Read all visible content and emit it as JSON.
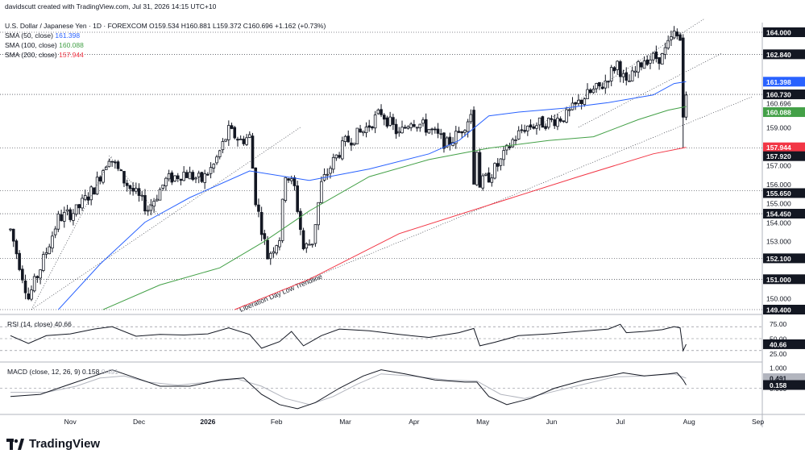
{
  "header": {
    "credit": "davidscutt created with TradingView.com, Jul 31, 2026 14:15 UTC+10",
    "symbol_line": "U.S. Dollar / Japanese Yen · 1D · FOREXCOM  O159.534  H160.881  L159.372  C160.696  +1.162 (+0.73%)",
    "sma50": "SMA (50, close)",
    "sma50_val": "161.398",
    "sma100": "SMA (100, close)",
    "sma100_val": "160.088",
    "sma200": "SMA (200, close)",
    "sma200_val": "157.944"
  },
  "colors": {
    "up": "#26a69a",
    "candle": "#131722",
    "sma50": "#2962ff",
    "sma100": "#43a047",
    "sma200": "#f23645",
    "rsi": "#131722",
    "macd": "#131722",
    "signal": "#b2b5be",
    "grid": "#e0e3eb"
  },
  "brand": {
    "logo_icon": "tradingview-logo-icon",
    "name": "TradingView"
  },
  "annotations": {
    "trendline_label": "Liberation Day Low Trendline"
  },
  "chart_data": [
    {
      "type": "candlestick",
      "title": "U.S. Dollar / Japanese Yen",
      "ylim": [
        149.4,
        164.0
      ],
      "y_ticks": [
        150.0,
        151.0,
        152.1,
        153.0,
        154.0,
        154.45,
        155.0,
        155.65,
        156.0,
        157.0,
        157.92,
        159.0,
        160.696,
        162.0,
        162.84,
        164.0
      ],
      "price_labels": [
        {
          "value": 164.0,
          "text": "164.000",
          "style": "dark"
        },
        {
          "value": 162.84,
          "text": "162.840",
          "style": "dark"
        },
        {
          "value": 161.398,
          "text": "161.398",
          "style": "sma50"
        },
        {
          "value": 160.73,
          "text": "160.730",
          "style": "dark"
        },
        {
          "value": 160.696,
          "text": "160.696",
          "style": "plain"
        },
        {
          "value": 160.088,
          "text": "160.088",
          "style": "sma100"
        },
        {
          "value": 159.0,
          "text": "159.000",
          "style": "plain"
        },
        {
          "value": 157.944,
          "text": "157.944",
          "style": "sma200"
        },
        {
          "value": 157.92,
          "text": "157.920",
          "style": "dark"
        },
        {
          "value": 157.0,
          "text": "157.000",
          "style": "plain"
        },
        {
          "value": 156.0,
          "text": "156.000",
          "style": "plain"
        },
        {
          "value": 155.65,
          "text": "155.650",
          "style": "dark"
        },
        {
          "value": 155.0,
          "text": "155.000",
          "style": "plain"
        },
        {
          "value": 154.45,
          "text": "154.450",
          "style": "dark"
        },
        {
          "value": 154.0,
          "text": "154.000",
          "style": "plain"
        },
        {
          "value": 153.0,
          "text": "153.000",
          "style": "plain"
        },
        {
          "value": 152.1,
          "text": "152.100",
          "style": "dark"
        },
        {
          "value": 151.0,
          "text": "151.000",
          "style": "dark"
        },
        {
          "value": 150.0,
          "text": "150.000",
          "style": "plain"
        },
        {
          "value": 149.4,
          "text": "149.400",
          "style": "dark"
        }
      ],
      "horizontal_levels": [
        164.0,
        162.84,
        160.73,
        157.92,
        155.65,
        154.45,
        152.1,
        151.0,
        149.4
      ],
      "x_labels": [
        {
          "i": 20,
          "text": "Nov",
          "bold": false
        },
        {
          "i": 43,
          "text": "Dec",
          "bold": false
        },
        {
          "i": 66,
          "text": "2026",
          "bold": true
        },
        {
          "i": 89,
          "text": "Feb",
          "bold": false
        },
        {
          "i": 112,
          "text": "Mar",
          "bold": false
        },
        {
          "i": 135,
          "text": "Apr",
          "bold": false
        },
        {
          "i": 158,
          "text": "May",
          "bold": false
        },
        {
          "i": 181,
          "text": "Jun",
          "bold": false
        },
        {
          "i": 204,
          "text": "Jul",
          "bold": false
        },
        {
          "i": 227,
          "text": "Aug",
          "bold": false
        },
        {
          "i": 250,
          "text": "Sep",
          "bold": false
        }
      ],
      "price_path": [
        [
          0,
          153.6
        ],
        [
          6,
          150.0
        ],
        [
          10,
          151.6
        ],
        [
          16,
          154.2
        ],
        [
          22,
          154.6
        ],
        [
          28,
          155.8
        ],
        [
          33,
          157.5
        ],
        [
          38,
          156.2
        ],
        [
          46,
          154.7
        ],
        [
          52,
          156.2
        ],
        [
          58,
          156.6
        ],
        [
          64,
          156.2
        ],
        [
          68,
          157.0
        ],
        [
          73,
          158.8
        ],
        [
          77,
          158.3
        ],
        [
          80,
          158.5
        ],
        [
          82,
          155.2
        ],
        [
          86,
          152.2
        ],
        [
          90,
          153.2
        ],
        [
          92,
          156.6
        ],
        [
          95,
          155.8
        ],
        [
          98,
          152.6
        ],
        [
          101,
          153.0
        ],
        [
          104,
          156.0
        ],
        [
          108,
          157.2
        ],
        [
          112,
          158.2
        ],
        [
          118,
          158.8
        ],
        [
          124,
          159.8
        ],
        [
          130,
          158.6
        ],
        [
          134,
          159.4
        ],
        [
          140,
          158.9
        ],
        [
          146,
          158.1
        ],
        [
          150,
          158.7
        ],
        [
          155,
          159.9
        ],
        [
          157,
          156.0
        ],
        [
          160,
          156.4
        ],
        [
          164,
          157.2
        ],
        [
          168,
          158.3
        ],
        [
          172,
          159.0
        ],
        [
          180,
          159.3
        ],
        [
          186,
          159.6
        ],
        [
          192,
          160.6
        ],
        [
          198,
          161.2
        ],
        [
          203,
          162.4
        ],
        [
          206,
          161.2
        ],
        [
          212,
          162.6
        ],
        [
          218,
          162.7
        ],
        [
          222,
          163.9
        ],
        [
          224,
          163.6
        ],
        [
          225,
          159.5
        ],
        [
          226,
          160.7
        ]
      ],
      "sma50": [
        [
          16,
          149.4
        ],
        [
          30,
          151.8
        ],
        [
          45,
          154.0
        ],
        [
          60,
          155.3
        ],
        [
          80,
          156.7
        ],
        [
          100,
          156.2
        ],
        [
          120,
          156.8
        ],
        [
          140,
          157.6
        ],
        [
          150,
          158.3
        ],
        [
          160,
          159.6
        ],
        [
          170,
          159.8
        ],
        [
          185,
          160.0
        ],
        [
          200,
          160.3
        ],
        [
          215,
          160.7
        ],
        [
          222,
          161.3
        ],
        [
          226,
          161.4
        ]
      ],
      "sma100": [
        [
          31,
          149.4
        ],
        [
          50,
          150.7
        ],
        [
          70,
          151.6
        ],
        [
          85,
          153.0
        ],
        [
          100,
          154.6
        ],
        [
          120,
          156.4
        ],
        [
          140,
          157.3
        ],
        [
          160,
          157.9
        ],
        [
          180,
          158.3
        ],
        [
          195,
          158.5
        ],
        [
          210,
          159.4
        ],
        [
          220,
          159.9
        ],
        [
          226,
          160.09
        ]
      ],
      "sma200": [
        [
          75,
          149.4
        ],
        [
          100,
          151.0
        ],
        [
          130,
          153.4
        ],
        [
          160,
          154.9
        ],
        [
          190,
          156.4
        ],
        [
          215,
          157.6
        ],
        [
          226,
          157.944
        ]
      ],
      "trendlines": [
        {
          "from": [
            7,
            149.4
          ],
          "to": [
            34,
            157.5
          ],
          "style": "dotted"
        },
        {
          "from": [
            7,
            149.4
          ],
          "to": [
            97,
            159.0
          ],
          "style": "dotted"
        },
        {
          "from": [
            33,
            157.5
          ],
          "to": [
            50,
            154.3
          ],
          "style": "dotted"
        },
        {
          "from": [
            75,
            149.4
          ],
          "to": [
            248,
            160.6
          ],
          "style": "dotted",
          "label": "Liberation Day Low Trendline"
        },
        {
          "from": [
            178,
            159.2
          ],
          "to": [
            232,
            164.7
          ],
          "style": "dotted"
        },
        {
          "from": [
            190,
            159.0
          ],
          "to": [
            238,
            162.9
          ],
          "style": "dotted"
        }
      ],
      "notable_candles": [
        {
          "i": 155,
          "o": 159.9,
          "h": 160.1,
          "l": 156.0,
          "c": 156.0
        },
        {
          "i": 225,
          "o": 163.7,
          "h": 163.9,
          "l": 157.92,
          "c": 159.53
        },
        {
          "i": 226,
          "o": 159.534,
          "h": 160.881,
          "l": 159.372,
          "c": 160.696
        }
      ]
    },
    {
      "type": "line",
      "title": "RSI (14, close)",
      "series": [
        {
          "name": "RSI",
          "last": 40.66
        }
      ],
      "ylim": [
        15,
        85
      ],
      "levels": [
        70,
        50,
        30
      ],
      "y_ticks": [
        {
          "value": 75.0,
          "text": "75.00"
        },
        {
          "value": 50.0,
          "text": "50.00"
        },
        {
          "value": 25.0,
          "text": "25.00"
        }
      ],
      "last_label": {
        "value": 40.66,
        "text": "40.66"
      },
      "path": [
        [
          0,
          55
        ],
        [
          6,
          42
        ],
        [
          12,
          55
        ],
        [
          20,
          58
        ],
        [
          28,
          66
        ],
        [
          34,
          70
        ],
        [
          42,
          54
        ],
        [
          50,
          57
        ],
        [
          58,
          56
        ],
        [
          66,
          58
        ],
        [
          73,
          68
        ],
        [
          80,
          57
        ],
        [
          84,
          34
        ],
        [
          90,
          45
        ],
        [
          94,
          62
        ],
        [
          98,
          38
        ],
        [
          104,
          55
        ],
        [
          110,
          66
        ],
        [
          120,
          63
        ],
        [
          130,
          57
        ],
        [
          140,
          52
        ],
        [
          150,
          60
        ],
        [
          155,
          67
        ],
        [
          157,
          38
        ],
        [
          162,
          44
        ],
        [
          170,
          55
        ],
        [
          180,
          58
        ],
        [
          190,
          62
        ],
        [
          200,
          66
        ],
        [
          204,
          74
        ],
        [
          206,
          60
        ],
        [
          212,
          62
        ],
        [
          218,
          65
        ],
        [
          222,
          70
        ],
        [
          224,
          68
        ],
        [
          225,
          30
        ],
        [
          226,
          40.66
        ]
      ]
    },
    {
      "type": "line",
      "title": "MACD (close, 12, 26, 9)",
      "series": [
        {
          "name": "MACD",
          "last": 0.158
        },
        {
          "name": "Signal",
          "last": 0.491
        }
      ],
      "ylim": [
        -1.2,
        1.2
      ],
      "y_ticks": [
        {
          "value": 1.0,
          "text": "1.000"
        },
        {
          "value": 0.0,
          "text": "0.000"
        }
      ],
      "last_labels": [
        {
          "value": 0.491,
          "text": "0.491",
          "style": "signal"
        },
        {
          "value": 0.158,
          "text": "0.158",
          "style": "macd"
        }
      ],
      "macd_path": [
        [
          0,
          -0.4
        ],
        [
          10,
          -0.3
        ],
        [
          20,
          0.2
        ],
        [
          28,
          0.6
        ],
        [
          34,
          0.9
        ],
        [
          42,
          0.5
        ],
        [
          50,
          0.1
        ],
        [
          60,
          0.1
        ],
        [
          70,
          0.4
        ],
        [
          78,
          0.5
        ],
        [
          84,
          -0.3
        ],
        [
          90,
          -0.8
        ],
        [
          96,
          -1.0
        ],
        [
          102,
          -0.7
        ],
        [
          110,
          0.0
        ],
        [
          118,
          0.6
        ],
        [
          124,
          0.9
        ],
        [
          132,
          0.7
        ],
        [
          142,
          0.4
        ],
        [
          152,
          0.3
        ],
        [
          156,
          0.3
        ],
        [
          160,
          -0.4
        ],
        [
          166,
          -0.8
        ],
        [
          174,
          -0.5
        ],
        [
          182,
          0.0
        ],
        [
          192,
          0.4
        ],
        [
          200,
          0.6
        ],
        [
          205,
          0.75
        ],
        [
          212,
          0.6
        ],
        [
          220,
          0.7
        ],
        [
          223,
          0.75
        ],
        [
          225,
          0.4
        ],
        [
          226,
          0.158
        ]
      ],
      "signal_path": [
        [
          0,
          -0.2
        ],
        [
          12,
          -0.2
        ],
        [
          22,
          0.1
        ],
        [
          30,
          0.5
        ],
        [
          38,
          0.6
        ],
        [
          46,
          0.3
        ],
        [
          56,
          0.15
        ],
        [
          66,
          0.3
        ],
        [
          76,
          0.45
        ],
        [
          84,
          0.1
        ],
        [
          92,
          -0.5
        ],
        [
          100,
          -0.8
        ],
        [
          108,
          -0.4
        ],
        [
          116,
          0.2
        ],
        [
          124,
          0.7
        ],
        [
          134,
          0.6
        ],
        [
          146,
          0.4
        ],
        [
          156,
          0.35
        ],
        [
          164,
          -0.3
        ],
        [
          172,
          -0.5
        ],
        [
          182,
          -0.15
        ],
        [
          192,
          0.2
        ],
        [
          202,
          0.55
        ],
        [
          212,
          0.6
        ],
        [
          222,
          0.7
        ],
        [
          226,
          0.491
        ]
      ]
    }
  ]
}
